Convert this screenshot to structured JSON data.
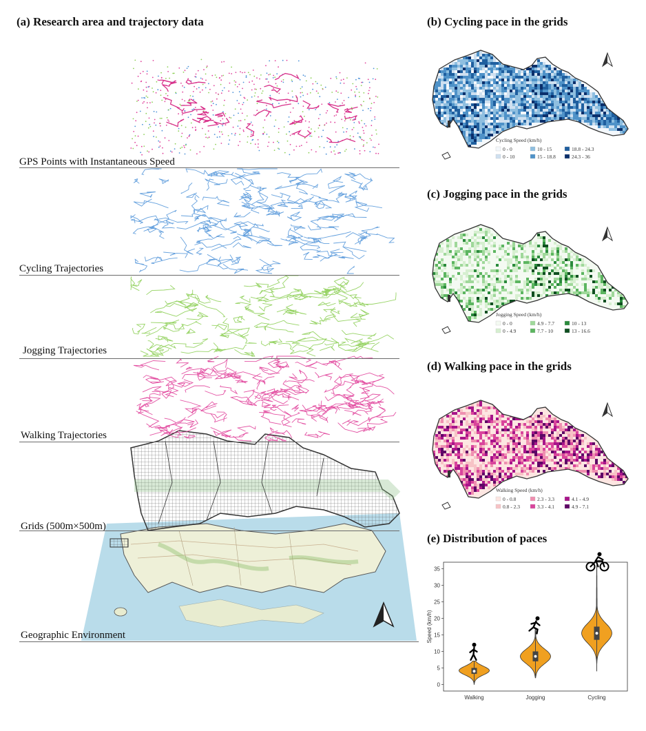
{
  "panels": {
    "a": {
      "title": "(a)  Research area and trajectory data",
      "layers": [
        "GPS Points with Instantaneous Speed",
        "Cycling Trajectories",
        "Jogging Trajectories",
        "Walking Trajectories",
        "Grids (500m×500m)",
        "Geographic Environment"
      ]
    },
    "b": {
      "title": "(b)  Cycling pace    in the grids",
      "legend_title": "Cycling Speed (km/h)",
      "legend": [
        "0 - 0",
        "0 - 10",
        "10 - 15",
        "15 - 18.8",
        "18.8 - 24.3",
        "24.3 - 36"
      ],
      "colors": [
        "#f4f8fc",
        "#cfe0f0",
        "#8fbfe0",
        "#4f92c8",
        "#1f5f9f",
        "#0b2f6b"
      ]
    },
    "c": {
      "title": "(c)  Jogging pace in the grids",
      "legend_title": "Jogging Speed (km/h)",
      "legend": [
        "0 - 0",
        "0 - 4.9",
        "4.9 - 7.7",
        "7.7 - 10",
        "10 - 13",
        "13 - 16.6"
      ],
      "colors": [
        "#f4faf2",
        "#d6efd0",
        "#9fd89a",
        "#5cb560",
        "#2a8a3c",
        "#0f4f20"
      ]
    },
    "d": {
      "title": "(d)  Walking pace in the grids",
      "legend_title": "Walking Speed (km/h)",
      "legend": [
        "0 - 0.8",
        "0.8 - 2.3",
        "2.3 - 3.3",
        "3.3 - 4.1",
        "4.1 - 4.9",
        "4.9 - 7.1"
      ],
      "colors": [
        "#fde6e2",
        "#f7c3c6",
        "#ef8fb0",
        "#d9459c",
        "#a8158a",
        "#5e0766"
      ]
    },
    "e": {
      "title": "(e)  Distribution of paces"
    }
  },
  "chart_data": {
    "type": "violin",
    "title": "",
    "xlabel": "",
    "ylabel": "Speed (km/h)",
    "ylim": [
      -2,
      37
    ],
    "yticks": [
      0,
      5,
      10,
      15,
      20,
      25,
      30,
      35
    ],
    "categories": [
      "Walking",
      "Jogging",
      "Cycling"
    ],
    "fill_color": "#f0a020",
    "series": [
      {
        "name": "Walking",
        "min": 0,
        "q1": 3.2,
        "median": 4.0,
        "q3": 5.0,
        "max": 7.1,
        "peak": 4.2
      },
      {
        "name": "Jogging",
        "min": 2.0,
        "q1": 7.0,
        "median": 8.5,
        "q3": 10.0,
        "max": 16.6,
        "peak": 8.5
      },
      {
        "name": "Cycling",
        "min": 4.0,
        "q1": 13.5,
        "median": 15.5,
        "q3": 17.5,
        "max": 36,
        "peak": 15.5
      }
    ],
    "icons": [
      "walker-icon",
      "runner-icon",
      "cyclist-icon"
    ]
  }
}
